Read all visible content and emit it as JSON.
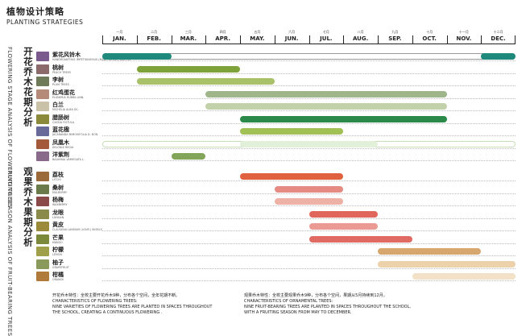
{
  "header": {
    "title": "植物设计策略",
    "subtitle": "PLANTING STRATEGIES"
  },
  "months": [
    {
      "cn": "一月",
      "en": "JAN."
    },
    {
      "cn": "二月",
      "en": "FEB."
    },
    {
      "cn": "三月",
      "en": "MAR."
    },
    {
      "cn": "四月",
      "en": "APR."
    },
    {
      "cn": "五月",
      "en": "MAY."
    },
    {
      "cn": "六月",
      "en": "JUN."
    },
    {
      "cn": "七月",
      "en": "JUL."
    },
    {
      "cn": "八月",
      "en": "AUG."
    },
    {
      "cn": "九月",
      "en": "SEP."
    },
    {
      "cn": "十月",
      "en": "OCT."
    },
    {
      "cn": "十一月",
      "en": "NOV."
    },
    {
      "cn": "十二月",
      "en": "DEC."
    }
  ],
  "sections": {
    "flowering": {
      "cn": "开花乔木花期分析",
      "en": "FLOWERING STAGE ANALYSIS OF FLOWERING TREES"
    },
    "fruiting": {
      "cn": "观果乔木果期分析",
      "en": "FRUITING SEASON ANALYSIS OF FRUIT-BEARING TREES"
    }
  },
  "chart_data": {
    "type": "gantt",
    "x_unit": "month (1 = JAN start, 13 = DEC end)",
    "flowering": [
      {
        "cn": "紫花风铃木",
        "latin": "HANDROANTHUS IMPETIGINOSUS (MART. EX DC.) MATTOS",
        "periods": [
          {
            "start": 1,
            "end": 3
          },
          {
            "start": 12,
            "end": 13
          }
        ],
        "color": "#1f8a7c",
        "outline": "#9a9a9a"
      },
      {
        "cn": "桃树",
        "latin": "PEACH TREES",
        "periods": [
          {
            "start": 2,
            "end": 5
          }
        ],
        "color": "#7ea33a"
      },
      {
        "cn": "李树",
        "latin": "PLUM TREES",
        "periods": [
          {
            "start": 2,
            "end": 6
          }
        ],
        "color": "#a9c26a"
      },
      {
        "cn": "红鸡蛋花",
        "latin": "PLUMERIA RUBRA LINN.",
        "periods": [
          {
            "start": 4,
            "end": 11
          }
        ],
        "color": "#9fb68a"
      },
      {
        "cn": "白兰",
        "latin": "MICHELIA ALBA DC.",
        "periods": [
          {
            "start": 4,
            "end": 11
          }
        ],
        "color": "#c3d1aa"
      },
      {
        "cn": "腊肠树",
        "latin": "CASSIA FISTULA",
        "periods": [
          {
            "start": 5,
            "end": 11
          }
        ],
        "color": "#2b8a49"
      },
      {
        "cn": "蓝花楹",
        "latin": "JACARANDA MIMOSIFOLIA D. DON",
        "periods": [
          {
            "start": 5,
            "end": 8
          }
        ],
        "color": "#a2c155"
      },
      {
        "cn": "凤凰木",
        "latin": "DELONIX REGIA",
        "periods": [
          {
            "start": 5,
            "end": 9
          }
        ],
        "color": "#e2efd9",
        "outline": "#c6ddb8"
      },
      {
        "cn": "洋紫荆",
        "latin": "BAUHINIA VARIEGATA L.",
        "periods": [
          {
            "start": 3,
            "end": 4
          }
        ],
        "color": "#82a55a"
      }
    ],
    "fruiting": [
      {
        "cn": "荔枝",
        "latin": "LITCHI",
        "periods": [
          {
            "start": 5,
            "end": 8
          }
        ],
        "color": "#e0613f"
      },
      {
        "cn": "桑树",
        "latin": "MULBERRY",
        "periods": [
          {
            "start": 6,
            "end": 8
          }
        ],
        "color": "#e58b83"
      },
      {
        "cn": "杨梅",
        "latin": "WAXBERRY",
        "periods": [
          {
            "start": 6,
            "end": 8
          }
        ],
        "color": "#eeb1a5"
      },
      {
        "cn": "龙眼",
        "latin": "LONGAN",
        "periods": [
          {
            "start": 7,
            "end": 9
          }
        ],
        "color": "#e0665c"
      },
      {
        "cn": "黄皮",
        "latin": "CLAUSENA LANSIUM (LOUR.) SKEELS",
        "periods": [
          {
            "start": 7,
            "end": 9
          }
        ],
        "color": "#ea9a92"
      },
      {
        "cn": "芒果",
        "latin": "MANGO",
        "periods": [
          {
            "start": 7,
            "end": 10
          }
        ],
        "color": "#df6b62"
      },
      {
        "cn": "柠檬",
        "latin": "LEMON",
        "periods": [
          {
            "start": 9,
            "end": 12
          }
        ],
        "color": "#d6a870"
      },
      {
        "cn": "柚子",
        "latin": "GRAPEFRUIT",
        "periods": [
          {
            "start": 9,
            "end": 13
          }
        ],
        "color": "#ecd1ab"
      },
      {
        "cn": "柑橘",
        "latin": "ORANGE",
        "periods": [
          {
            "start": 10,
            "end": 13
          }
        ],
        "color": "#f2e1c6"
      }
    ]
  },
  "notes": {
    "flowering": {
      "cn": "开花乔木特性：全校主要开花乔木9种，分布各个空间，全年花期不断。",
      "en1": "CHARACTERISTICS OF FLOWERING TREES:",
      "en2": "NINE VARIETIES OF FLOWERING TREES ARE PLANTED IN SPACES THROUGHOUT",
      "en3": "THE SCHOOL, CREATING A CONTINUOUS FLOWERING ."
    },
    "fruiting": {
      "cn": "观果乔木特性：全校主要观果乔木9种，分布各个空间，果期从5月持续到12月。",
      "en1": "CHARACTERISTICS OF ORNAMENTAL TREES:",
      "en2": "NINE FRUIT-BEARING TREES ARE PLANTED IN SPACES THROUGHOUT THE SCHOOL,",
      "en3": "WITH A FRUITING SEASON FROM MAY TO DECEMBER."
    }
  },
  "thumb_colors": {
    "flowering": [
      "#7a5a8c",
      "#8c6a6c",
      "#6f7a58",
      "#b58a78",
      "#c9c2a8",
      "#8a8a3a",
      "#6a6a9a",
      "#a45a3a",
      "#8a6a8a"
    ],
    "fruiting": [
      "#9a6a3a",
      "#6a7a4a",
      "#8a4a4a",
      "#8a8a4a",
      "#9a8a3a",
      "#7a8a3a",
      "#a0a04a",
      "#8a9a5a",
      "#b07a3a"
    ]
  }
}
